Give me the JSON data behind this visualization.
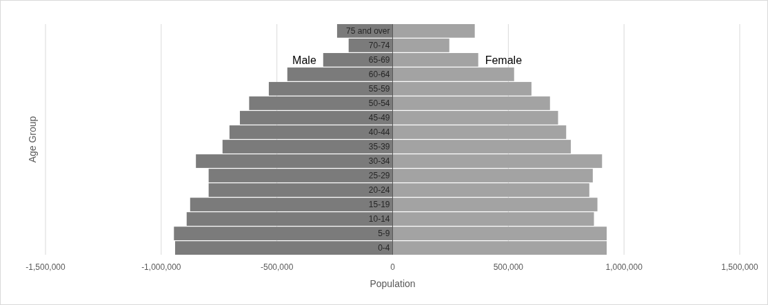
{
  "chart_data": {
    "type": "bar",
    "orientation": "horizontal",
    "xlabel": "Population",
    "ylabel": "Age Group",
    "categories": [
      "75 and over",
      "70-74",
      "65-69",
      "60-64",
      "55-59",
      "50-54",
      "45-49",
      "40-44",
      "35-39",
      "30-34",
      "25-29",
      "20-24",
      "15-19",
      "10-14",
      "5-9",
      "0-4"
    ],
    "series": [
      {
        "name": "Male",
        "color": "#7b7b7b",
        "values": [
          -240000,
          -190000,
          -300000,
          -455000,
          -535000,
          -620000,
          -660000,
          -705000,
          -735000,
          -850000,
          -795000,
          -795000,
          -875000,
          -890000,
          -945000,
          -940000
        ]
      },
      {
        "name": "Female",
        "color": "#a3a3a3",
        "values": [
          355000,
          245000,
          370000,
          525000,
          600000,
          680000,
          715000,
          750000,
          770000,
          905000,
          865000,
          850000,
          885000,
          870000,
          925000,
          925000
        ]
      }
    ],
    "xlim": [
      -1500000,
      1500000
    ],
    "xticks": [
      {
        "value": -1500000,
        "label": "-1,500,000"
      },
      {
        "value": -1000000,
        "label": "-1,000,000"
      },
      {
        "value": -500000,
        "label": "-500,000"
      },
      0,
      {
        "value": 500000,
        "label": "500,000"
      },
      {
        "value": 1000000,
        "label": "1,000,000"
      },
      {
        "value": 1500000,
        "label": "1,500,000"
      }
    ],
    "grid": "x",
    "stacked": true,
    "legend": false
  }
}
